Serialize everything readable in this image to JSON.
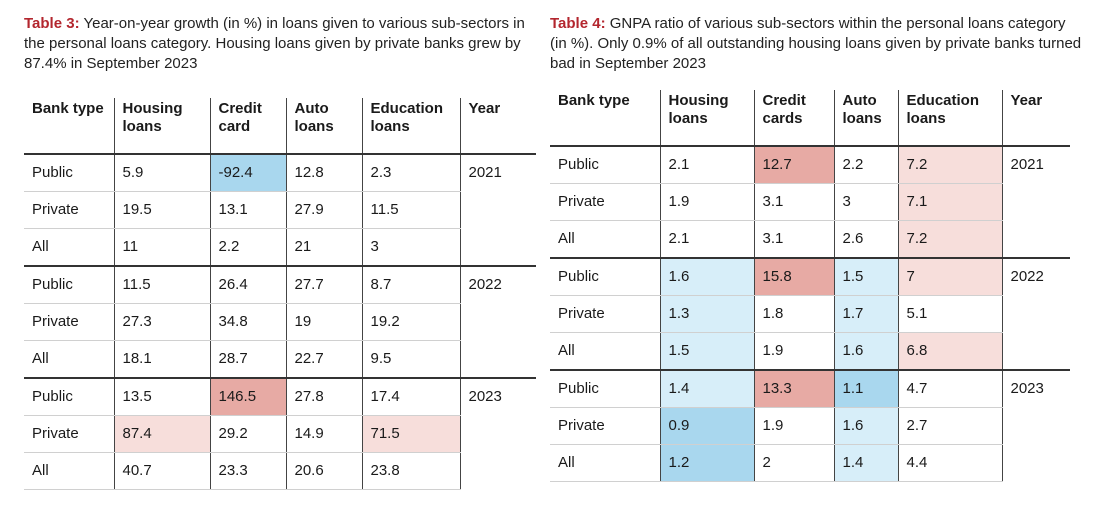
{
  "table3": {
    "label": "Table 3:",
    "caption": "Year-on-year growth (in %) in loans given to various sub-sectors in the personal loans category. Housing loans given by private banks grew by 87.4% in September 2023",
    "headers": [
      "Bank type",
      "Housing loans",
      "Credit card",
      "Auto loans",
      "Education loans",
      "Year"
    ],
    "rows": [
      [
        "Public",
        "5.9",
        "-92.4",
        "12.8",
        "2.3",
        "2021"
      ],
      [
        "Private",
        "19.5",
        "13.1",
        "27.9",
        "11.5",
        ""
      ],
      [
        "All",
        "11",
        "2.2",
        "21",
        "3",
        ""
      ],
      [
        "Public",
        "11.5",
        "26.4",
        "27.7",
        "8.7",
        "2022"
      ],
      [
        "Private",
        "27.3",
        "34.8",
        "19",
        "19.2",
        ""
      ],
      [
        "All",
        "18.1",
        "28.7",
        "22.7",
        "9.5",
        ""
      ],
      [
        "Public",
        "13.5",
        "146.5",
        "27.8",
        "17.4",
        "2023"
      ],
      [
        "Private",
        "87.4",
        "29.2",
        "14.9",
        "71.5",
        ""
      ],
      [
        "All",
        "40.7",
        "23.3",
        "20.6",
        "23.8",
        ""
      ]
    ],
    "highlight_colors": {
      "blue": "#a9d7ee",
      "red": "#e7aaa4",
      "pink": "#f7dedb"
    }
  },
  "table4": {
    "label": "Table 4:",
    "caption": "GNPA ratio of various sub-sectors within the personal loans category (in %). Only 0.9% of all outstanding housing loans given by private banks turned bad in September 2023",
    "headers": [
      "Bank type",
      "Housing loans",
      "Credit cards",
      "Auto loans",
      "Education loans",
      "Year"
    ],
    "rows": [
      [
        "Public",
        "2.1",
        "12.7",
        "2.2",
        "7.2",
        "2021"
      ],
      [
        "Private",
        "1.9",
        "3.1",
        "3",
        "7.1",
        ""
      ],
      [
        "All",
        "2.1",
        "3.1",
        "2.6",
        "7.2",
        ""
      ],
      [
        "Public",
        "1.6",
        "15.8",
        "1.5",
        "7",
        "2022"
      ],
      [
        "Private",
        "1.3",
        "1.8",
        "1.7",
        "5.1",
        ""
      ],
      [
        "All",
        "1.5",
        "1.9",
        "1.6",
        "6.8",
        ""
      ],
      [
        "Public",
        "1.4",
        "13.3",
        "1.1",
        "4.7",
        "2023"
      ],
      [
        "Private",
        "0.9",
        "1.9",
        "1.6",
        "2.7",
        ""
      ],
      [
        "All",
        "1.2",
        "2",
        "1.4",
        "4.4",
        ""
      ]
    ],
    "highlight_colors": {
      "blue": "#a9d7ee",
      "light_blue": "#d7eef9",
      "red": "#e7aaa4",
      "pink": "#f7dedb"
    }
  }
}
